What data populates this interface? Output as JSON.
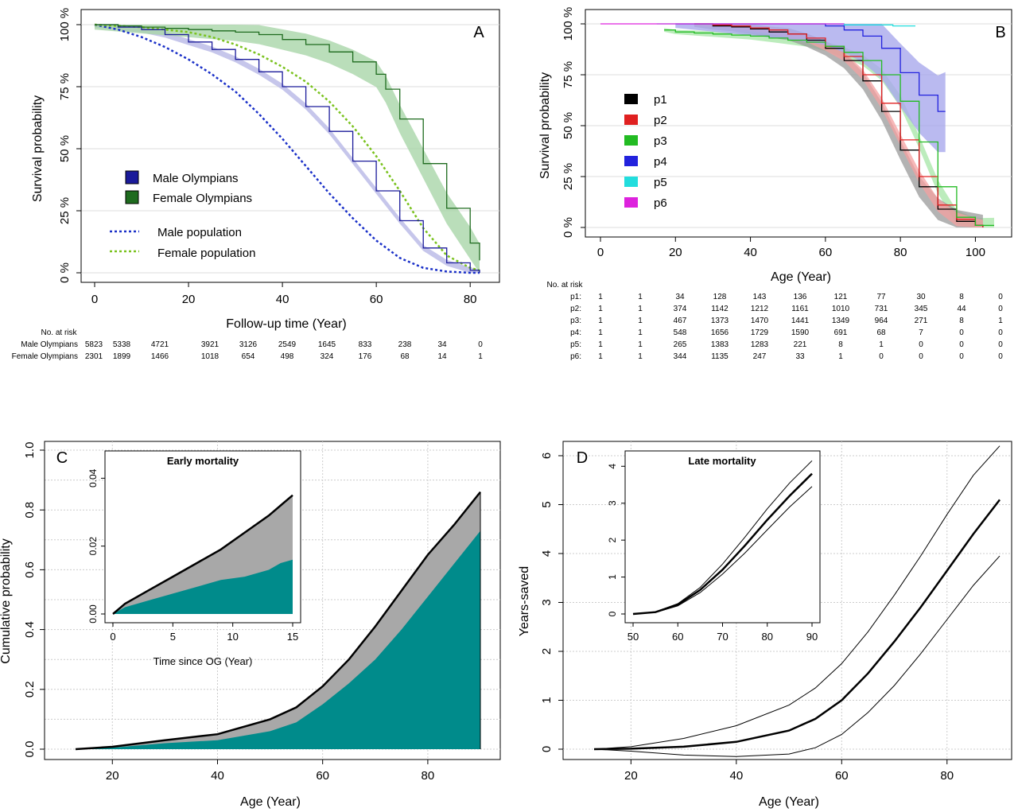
{
  "panels": {
    "A": {
      "letter": "A",
      "ylabel": "Survival probability",
      "xlabel": "Follow-up time (Year)",
      "xticks": [
        0,
        20,
        40,
        60,
        80
      ],
      "yticks": [
        "0 %",
        "25 %",
        "50 %",
        "75 %",
        "100 %"
      ],
      "legend": [
        "Male Olympians",
        "Female Olympians",
        "Male population",
        "Female population"
      ],
      "risk_header": "No. at risk",
      "risk_rows": [
        {
          "label": "Male Olympians",
          "values": [
            "5823",
            "5338",
            "4721",
            "3921",
            "3126",
            "2549",
            "1645",
            "833",
            "238",
            "34",
            "0"
          ]
        },
        {
          "label": "Female Olympians",
          "values": [
            "2301",
            "1899",
            "1466",
            "1018",
            "654",
            "498",
            "324",
            "176",
            "68",
            "14",
            "1"
          ]
        }
      ]
    },
    "B": {
      "letter": "B",
      "ylabel": "Survival probability",
      "xlabel": "Age (Year)",
      "xticks": [
        0,
        20,
        40,
        60,
        80,
        100
      ],
      "yticks": [
        "0 %",
        "25 %",
        "50 %",
        "75 %",
        "100 %"
      ],
      "legend": [
        "p1",
        "p2",
        "p3",
        "p4",
        "p5",
        "p6"
      ],
      "risk_header": "No. at risk",
      "risk_rows": [
        {
          "label": "p1:",
          "values": [
            "1",
            "1",
            "34",
            "128",
            "143",
            "136",
            "121",
            "77",
            "30",
            "8",
            "0"
          ]
        },
        {
          "label": "p2:",
          "values": [
            "1",
            "1",
            "374",
            "1142",
            "1212",
            "1161",
            "1010",
            "731",
            "345",
            "44",
            "0"
          ]
        },
        {
          "label": "p3:",
          "values": [
            "1",
            "1",
            "467",
            "1373",
            "1470",
            "1441",
            "1349",
            "964",
            "271",
            "8",
            "1"
          ]
        },
        {
          "label": "p4:",
          "values": [
            "1",
            "1",
            "548",
            "1656",
            "1729",
            "1590",
            "691",
            "68",
            "7",
            "0",
            "0"
          ]
        },
        {
          "label": "p5:",
          "values": [
            "1",
            "1",
            "265",
            "1383",
            "1283",
            "221",
            "8",
            "1",
            "0",
            "0",
            "0"
          ]
        },
        {
          "label": "p6:",
          "values": [
            "1",
            "1",
            "344",
            "1135",
            "247",
            "33",
            "1",
            "0",
            "0",
            "0",
            "0"
          ]
        }
      ]
    },
    "C": {
      "letter": "C",
      "ylabel": "Cumulative probability",
      "xlabel": "Age (Year)",
      "xticks": [
        20,
        40,
        60,
        80
      ],
      "yticks": [
        "0.0",
        "0.2",
        "0.4",
        "0.6",
        "0.8",
        "1.0"
      ],
      "inset_title": "Early mortality",
      "inset_xlabel": "Time since OG (Year)",
      "inset_xticks": [
        0,
        5,
        10,
        15
      ],
      "inset_yticks": [
        "0.00",
        "0.02",
        "0.04"
      ]
    },
    "D": {
      "letter": "D",
      "ylabel": "Years-saved",
      "xlabel": "Age (Year)",
      "xticks": [
        20,
        40,
        60,
        80
      ],
      "yticks": [
        "0",
        "1",
        "2",
        "3",
        "4",
        "5",
        "6"
      ],
      "inset_title": "Late mortality",
      "inset_xticks": [
        50,
        60,
        70,
        80,
        90
      ],
      "inset_yticks": [
        "0",
        "1",
        "2",
        "3",
        "4"
      ]
    }
  },
  "colors": {
    "male": "#1a1a9a",
    "male_band": "#b8b8e6",
    "female": "#1e6b1e",
    "female_band": "#a9d6a9",
    "male_pop": "#1a30c8",
    "female_pop": "#7ac21e",
    "p1": "#000000",
    "p2": "#e02020",
    "p3": "#22bb22",
    "p4": "#2222dd",
    "p5": "#22dddd",
    "p6": "#dd22dd",
    "teal": "#008b8b",
    "gray_band": "#a8a8a8"
  },
  "chart_data": [
    {
      "panel": "A",
      "type": "line",
      "xlabel": "Follow-up time (Year)",
      "ylabel": "Survival probability",
      "xlim": [
        0,
        82
      ],
      "ylim": [
        0,
        1
      ],
      "series": [
        {
          "name": "Male Olympians",
          "x": [
            0,
            5,
            10,
            15,
            20,
            25,
            30,
            35,
            40,
            45,
            50,
            55,
            60,
            65,
            70,
            75,
            80,
            82
          ],
          "y": [
            1.0,
            0.99,
            0.98,
            0.96,
            0.93,
            0.9,
            0.86,
            0.81,
            0.75,
            0.67,
            0.57,
            0.45,
            0.33,
            0.21,
            0.1,
            0.04,
            0.01,
            0.0
          ]
        },
        {
          "name": "Female Olympians",
          "x": [
            0,
            5,
            10,
            15,
            20,
            25,
            30,
            35,
            40,
            45,
            50,
            55,
            60,
            62,
            65,
            70,
            75,
            80,
            82
          ],
          "y": [
            1.0,
            0.995,
            0.99,
            0.985,
            0.98,
            0.975,
            0.97,
            0.96,
            0.94,
            0.92,
            0.89,
            0.85,
            0.8,
            0.74,
            0.62,
            0.44,
            0.26,
            0.12,
            0.05
          ]
        },
        {
          "name": "Male population",
          "x": [
            0,
            5,
            10,
            15,
            20,
            25,
            30,
            35,
            40,
            45,
            50,
            55,
            60,
            65,
            70,
            75,
            80,
            82
          ],
          "y": [
            1.0,
            0.98,
            0.95,
            0.91,
            0.86,
            0.8,
            0.73,
            0.64,
            0.54,
            0.43,
            0.32,
            0.22,
            0.13,
            0.06,
            0.02,
            0.005,
            0.0,
            0.0
          ]
        },
        {
          "name": "Female population",
          "x": [
            0,
            5,
            10,
            15,
            20,
            25,
            30,
            35,
            40,
            45,
            50,
            55,
            60,
            65,
            70,
            75,
            80,
            82
          ],
          "y": [
            1.0,
            0.995,
            0.99,
            0.98,
            0.97,
            0.95,
            0.92,
            0.88,
            0.83,
            0.77,
            0.69,
            0.59,
            0.47,
            0.33,
            0.18,
            0.07,
            0.02,
            0.01
          ]
        }
      ]
    },
    {
      "panel": "B",
      "type": "line",
      "xlabel": "Age (Year)",
      "ylabel": "Survival probability",
      "xlim": [
        0,
        105
      ],
      "ylim": [
        0,
        1
      ],
      "series": [
        {
          "name": "p1",
          "x": [
            25,
            30,
            35,
            40,
            45,
            50,
            55,
            60,
            65,
            70,
            75,
            80,
            85,
            90,
            95,
            100,
            102
          ],
          "y": [
            1.0,
            0.99,
            0.985,
            0.975,
            0.96,
            0.95,
            0.92,
            0.88,
            0.82,
            0.72,
            0.57,
            0.38,
            0.2,
            0.09,
            0.03,
            0.01,
            0.0
          ]
        },
        {
          "name": "p2",
          "x": [
            25,
            30,
            35,
            40,
            45,
            50,
            55,
            60,
            65,
            70,
            75,
            80,
            85,
            90,
            95,
            100,
            102
          ],
          "y": [
            1.0,
            0.995,
            0.99,
            0.98,
            0.97,
            0.95,
            0.93,
            0.89,
            0.84,
            0.75,
            0.61,
            0.43,
            0.25,
            0.11,
            0.04,
            0.01,
            0.0
          ]
        },
        {
          "name": "p3",
          "x": [
            17,
            20,
            25,
            30,
            35,
            40,
            45,
            50,
            55,
            60,
            65,
            70,
            75,
            80,
            85,
            90,
            95,
            100,
            105
          ],
          "y": [
            0.97,
            0.96,
            0.955,
            0.95,
            0.945,
            0.94,
            0.93,
            0.92,
            0.91,
            0.89,
            0.86,
            0.82,
            0.75,
            0.62,
            0.42,
            0.2,
            0.05,
            0.01,
            0.01
          ]
        },
        {
          "name": "p4",
          "x": [
            20,
            30,
            40,
            50,
            60,
            65,
            70,
            75,
            80,
            85,
            90,
            92
          ],
          "y": [
            1.0,
            1.0,
            1.0,
            1.0,
            0.99,
            0.97,
            0.94,
            0.88,
            0.76,
            0.65,
            0.57,
            0.57
          ]
        },
        {
          "name": "p5",
          "x": [
            15,
            30,
            50,
            65,
            78,
            84
          ],
          "y": [
            1.0,
            1.0,
            1.0,
            0.995,
            0.99,
            0.99
          ]
        },
        {
          "name": "p6",
          "x": [
            0,
            20,
            40,
            60,
            65
          ],
          "y": [
            1.0,
            1.0,
            1.0,
            1.0,
            1.0
          ]
        }
      ]
    },
    {
      "panel": "C",
      "type": "area",
      "xlabel": "Age (Year)",
      "ylabel": "Cumulative probability",
      "xlim": [
        13,
        90
      ],
      "ylim": [
        0,
        1
      ],
      "series": [
        {
          "name": "teal",
          "x": [
            13,
            20,
            30,
            40,
            50,
            55,
            60,
            65,
            70,
            75,
            80,
            85,
            90
          ],
          "y": [
            0,
            0.005,
            0.02,
            0.03,
            0.06,
            0.09,
            0.15,
            0.22,
            0.3,
            0.4,
            0.51,
            0.62,
            0.73
          ]
        },
        {
          "name": "gray",
          "x": [
            13,
            20,
            30,
            40,
            50,
            55,
            60,
            65,
            70,
            75,
            80,
            85,
            90
          ],
          "y": [
            0,
            0.008,
            0.03,
            0.05,
            0.1,
            0.14,
            0.21,
            0.3,
            0.41,
            0.53,
            0.65,
            0.75,
            0.86
          ]
        }
      ]
    },
    {
      "panel": "C-inset",
      "type": "area",
      "title": "Early mortality",
      "xlabel": "Time since OG (Year)",
      "xlim": [
        0,
        15
      ],
      "ylim": [
        0,
        0.045
      ],
      "series": [
        {
          "name": "teal",
          "x": [
            0,
            1,
            3,
            5,
            7,
            9,
            11,
            13,
            14,
            15
          ],
          "y": [
            0,
            0.002,
            0.004,
            0.006,
            0.008,
            0.01,
            0.011,
            0.013,
            0.015,
            0.016
          ]
        },
        {
          "name": "gray",
          "x": [
            0,
            1,
            3,
            5,
            7,
            9,
            11,
            13,
            14,
            15
          ],
          "y": [
            0,
            0.003,
            0.007,
            0.011,
            0.015,
            0.019,
            0.024,
            0.029,
            0.032,
            0.035
          ]
        }
      ]
    },
    {
      "panel": "D",
      "type": "line",
      "xlabel": "Age (Year)",
      "ylabel": "Years-saved",
      "xlim": [
        13,
        90
      ],
      "ylim": [
        0,
        6
      ],
      "series": [
        {
          "name": "estimate",
          "x": [
            13,
            20,
            30,
            40,
            50,
            55,
            60,
            65,
            70,
            75,
            80,
            85,
            90
          ],
          "y": [
            0,
            0.01,
            0.05,
            0.15,
            0.38,
            0.62,
            1.0,
            1.55,
            2.2,
            2.9,
            3.65,
            4.4,
            5.1
          ]
        },
        {
          "name": "upper",
          "x": [
            13,
            20,
            30,
            40,
            50,
            55,
            60,
            65,
            70,
            75,
            80,
            85,
            90
          ],
          "y": [
            0,
            0.05,
            0.22,
            0.48,
            0.9,
            1.25,
            1.75,
            2.4,
            3.15,
            3.95,
            4.8,
            5.6,
            6.2
          ]
        },
        {
          "name": "lower",
          "x": [
            13,
            20,
            30,
            40,
            50,
            55,
            60,
            65,
            70,
            75,
            80,
            85,
            90
          ],
          "y": [
            0,
            -0.04,
            -0.12,
            -0.15,
            -0.1,
            0.03,
            0.3,
            0.75,
            1.3,
            1.95,
            2.65,
            3.35,
            3.95
          ]
        }
      ]
    },
    {
      "panel": "D-inset",
      "type": "line",
      "title": "Late mortality",
      "xlim": [
        50,
        90
      ],
      "ylim": [
        0,
        4.2
      ],
      "series": [
        {
          "name": "estimate",
          "x": [
            50,
            55,
            60,
            65,
            70,
            75,
            80,
            85,
            90
          ],
          "y": [
            0,
            0.05,
            0.25,
            0.65,
            1.2,
            1.85,
            2.55,
            3.2,
            3.8
          ]
        },
        {
          "name": "upper",
          "x": [
            50,
            55,
            60,
            65,
            70,
            75,
            80,
            85,
            90
          ],
          "y": [
            0,
            0.06,
            0.28,
            0.72,
            1.35,
            2.08,
            2.85,
            3.55,
            4.15
          ]
        },
        {
          "name": "lower",
          "x": [
            50,
            55,
            60,
            65,
            70,
            75,
            80,
            85,
            90
          ],
          "y": [
            0,
            0.04,
            0.22,
            0.58,
            1.08,
            1.65,
            2.28,
            2.9,
            3.45
          ]
        }
      ]
    }
  ]
}
